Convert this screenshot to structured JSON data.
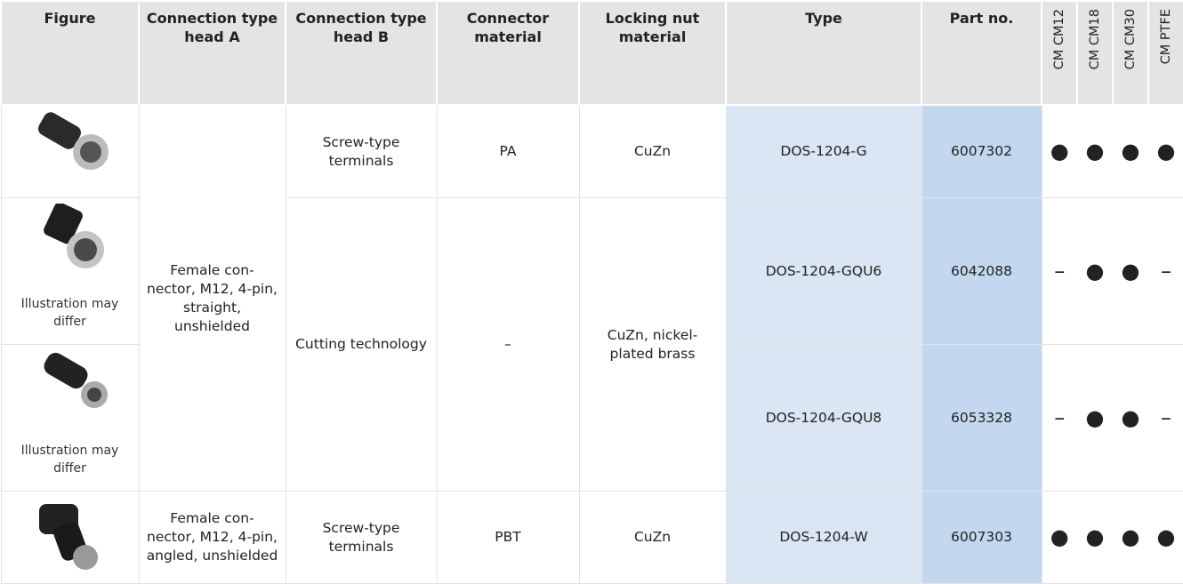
{
  "table": {
    "columns": [
      "Figure",
      "Connection type head A",
      "Connection type head B",
      "Connector material",
      "Locking nut material",
      "Type",
      "Part no.",
      "CM CM12",
      "CM CM18",
      "CM CM30",
      "CM PTFE"
    ],
    "rows": [
      {
        "head_a": "Female con-nector, M12, 4-pin, straight, unshielded",
        "head_b": "Screw-type terminals",
        "connector_material": "PA",
        "locking_nut_material": "CuZn",
        "type": "DOS-1204-G",
        "part_no": "6007302",
        "compat": [
          "●",
          "●",
          "●",
          "●"
        ]
      },
      {
        "figure_caption": "Illustration may differ",
        "head_b": "Cutting technology",
        "connector_material": "–",
        "locking_nut_material": "CuZn, nickel-plated brass",
        "type": "DOS-1204-GQU6",
        "part_no": "6042088",
        "compat": [
          "–",
          "●",
          "●",
          "–"
        ]
      },
      {
        "figure_caption": "Illustration may differ",
        "type": "DOS-1204-GQU8",
        "part_no": "6053328",
        "compat": [
          "–",
          "●",
          "●",
          "–"
        ]
      },
      {
        "head_a": "Female con-nector, M12, 4-pin, angled, unshielded",
        "head_b": "Screw-type terminals",
        "connector_material": "PBT",
        "locking_nut_material": "CuZn",
        "type": "DOS-1204-W",
        "part_no": "6007303",
        "compat": [
          "●",
          "●",
          "●",
          "●"
        ]
      }
    ]
  }
}
